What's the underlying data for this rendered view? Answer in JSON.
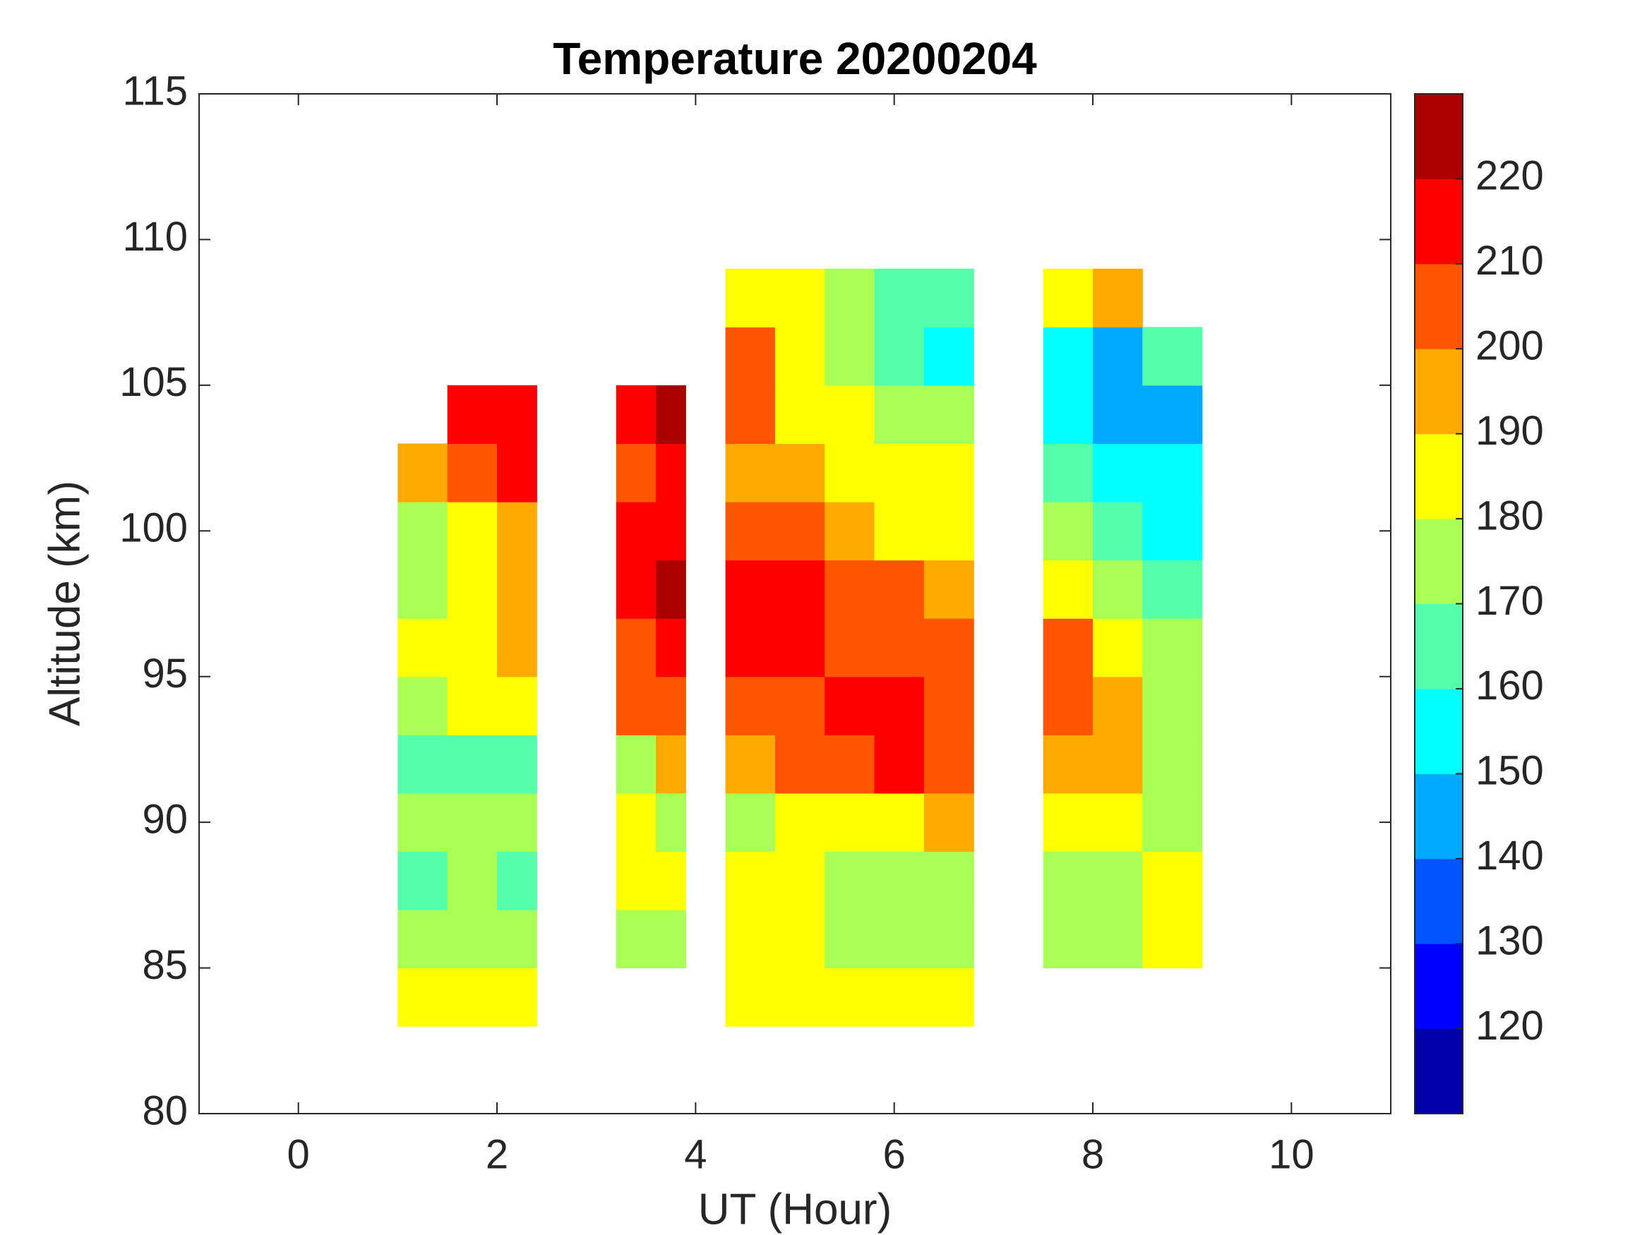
{
  "chart_data": {
    "type": "contourf",
    "title": "Temperature 20200204",
    "xlabel": "UT (Hour)",
    "ylabel": "Altitude (km)",
    "xlim": [
      -1,
      11
    ],
    "xticks": [
      0,
      2,
      4,
      6,
      8,
      10
    ],
    "ylim": [
      80,
      115
    ],
    "yticks": [
      80,
      85,
      90,
      95,
      100,
      105,
      110,
      115
    ],
    "xbins": [
      1.0,
      1.5,
      2.0,
      2.4,
      3.2,
      3.6,
      3.9,
      4.3,
      4.8,
      5.3,
      5.8,
      6.3,
      6.8,
      7.5,
      8.0,
      8.5,
      9.1
    ],
    "ybins": [
      83,
      85,
      87,
      89,
      91,
      93,
      95,
      97,
      99,
      101,
      103,
      105,
      107,
      109
    ],
    "z": [
      [
        184,
        184,
        184,
        null,
        null,
        null,
        null,
        185,
        185,
        185,
        185,
        185,
        null,
        null,
        null,
        null
      ],
      [
        176,
        176,
        178,
        null,
        178,
        178,
        null,
        185,
        185,
        178,
        176,
        178,
        null,
        178,
        175,
        180
      ],
      [
        166,
        172,
        168,
        null,
        184,
        184,
        null,
        183,
        182,
        175,
        176,
        175,
        null,
        172,
        176,
        180
      ],
      [
        175,
        176,
        175,
        null,
        182,
        178,
        null,
        178,
        182,
        182,
        188,
        198,
        null,
        183,
        185,
        178
      ],
      [
        168,
        166,
        168,
        null,
        175,
        190,
        null,
        195,
        202,
        207,
        210,
        205,
        null,
        198,
        190,
        178
      ],
      [
        176,
        185,
        182,
        null,
        200,
        205,
        null,
        205,
        208,
        212,
        213,
        208,
        null,
        203,
        195,
        176
      ],
      [
        180,
        182,
        192,
        null,
        205,
        212,
        null,
        212,
        214,
        208,
        206,
        205,
        null,
        205,
        188,
        170
      ],
      [
        175,
        182,
        195,
        null,
        215,
        222,
        null,
        214,
        212,
        205,
        203,
        198,
        null,
        185,
        178,
        165
      ],
      [
        176,
        180,
        190,
        null,
        212,
        218,
        null,
        205,
        200,
        192,
        187,
        185,
        null,
        175,
        166,
        158
      ],
      [
        195,
        205,
        212,
        null,
        208,
        215,
        null,
        198,
        192,
        186,
        183,
        180,
        null,
        165,
        155,
        150
      ],
      [
        null,
        218,
        215,
        null,
        215,
        220,
        null,
        200,
        188,
        182,
        178,
        172,
        null,
        150,
        142,
        148
      ],
      [
        null,
        null,
        null,
        null,
        null,
        null,
        null,
        202,
        180,
        175,
        168,
        158,
        null,
        150,
        140,
        165
      ],
      [
        null,
        null,
        null,
        null,
        null,
        null,
        null,
        188,
        182,
        172,
        165,
        162,
        null,
        185,
        195,
        null
      ]
    ],
    "colorbar": {
      "levels": [
        110,
        120,
        130,
        140,
        150,
        160,
        170,
        180,
        190,
        200,
        210,
        220,
        230
      ],
      "colors": [
        "#0000aa",
        "#0000ff",
        "#0055ff",
        "#00aaff",
        "#00ffff",
        "#55ffaa",
        "#aaff55",
        "#ffff00",
        "#ffaa00",
        "#ff5500",
        "#ff0000",
        "#aa0000"
      ],
      "ticks": [
        120,
        130,
        140,
        150,
        160,
        170,
        180,
        190,
        200,
        210,
        220
      ]
    }
  }
}
